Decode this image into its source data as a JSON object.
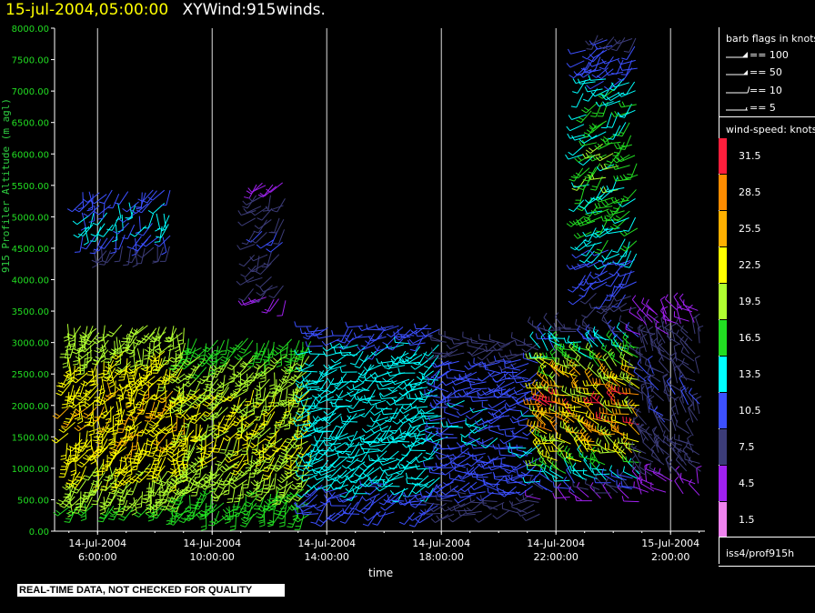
{
  "header": {
    "timestamp": "15-jul-2004,05:00:00",
    "product": "XYWind:915winds."
  },
  "qc_note": "REAL-TIME DATA, NOT CHECKED FOR QUALITY",
  "legend": {
    "barb_title": "barb flags in knots",
    "barb_items": [
      {
        "label": "== 100",
        "icon": "barb-pennant-icon"
      },
      {
        "label": "== 50",
        "icon": "barb-flag-icon"
      },
      {
        "label": "== 10",
        "icon": "barb-full-icon"
      },
      {
        "label": "== 5",
        "icon": "barb-half-icon"
      }
    ],
    "speed_title": "wind-speed: knots",
    "speed_bins": [
      {
        "label": "31.5",
        "color": "#ff1e3c"
      },
      {
        "label": "28.5",
        "color": "#ff8c00"
      },
      {
        "label": "25.5",
        "color": "#ffb000"
      },
      {
        "label": "22.5",
        "color": "#ffff00"
      },
      {
        "label": "19.5",
        "color": "#b0ff30"
      },
      {
        "label": "16.5",
        "color": "#22dd22"
      },
      {
        "label": "13.5",
        "color": "#00ffff"
      },
      {
        "label": "10.5",
        "color": "#3c50ff"
      },
      {
        "label": "7.5",
        "color": "#3c3c78"
      },
      {
        "label": "4.5",
        "color": "#a020f0"
      },
      {
        "label": "1.5",
        "color": "#ee82ee"
      }
    ],
    "station": "iss4/prof915h"
  },
  "chart_data": {
    "type": "scatter",
    "subtype": "wind-barb time-height",
    "ylabel": "915 Profiler Altitude (m agl)",
    "xlabel": "time",
    "ylim": [
      0,
      8000
    ],
    "yticks": [
      "0.00",
      "500.00",
      "1000.00",
      "1500.00",
      "2000.00",
      "2500.00",
      "3000.00",
      "3500.00",
      "4000.00",
      "4500.00",
      "5000.00",
      "5500.00",
      "6000.00",
      "6500.00",
      "7000.00",
      "7500.00",
      "8000.00"
    ],
    "xlim_hours": [
      4.5,
      27.2
    ],
    "xticks": [
      {
        "hour": 6,
        "date": "14-Jul-2004",
        "time": "6:00:00"
      },
      {
        "hour": 10,
        "date": "14-Jul-2004",
        "time": "10:00:00"
      },
      {
        "hour": 14,
        "date": "14-Jul-2004",
        "time": "14:00:00"
      },
      {
        "hour": 18,
        "date": "14-Jul-2004",
        "time": "18:00:00"
      },
      {
        "hour": 22,
        "date": "14-Jul-2004",
        "time": "22:00:00"
      },
      {
        "hour": 26,
        "date": "15-Jul-2004",
        "time": "2:00:00"
      }
    ],
    "vertical_grid": true,
    "profiles": [
      {
        "start": 5.0,
        "end": 9.0,
        "bottom": 400,
        "top": 3300,
        "step": 130,
        "speed": 18,
        "dir": 200,
        "alt_speed": 24
      },
      {
        "start": 9.0,
        "end": 13.5,
        "bottom": 300,
        "top": 3100,
        "step": 130,
        "speed": 16,
        "dir": 210,
        "alt_speed": 22
      },
      {
        "start": 13.5,
        "end": 18.0,
        "bottom": 300,
        "top": 3300,
        "step": 140,
        "speed": 11,
        "dir": 240,
        "alt_speed": 14
      },
      {
        "start": 18.0,
        "end": 21.5,
        "bottom": 300,
        "top": 3000,
        "step": 150,
        "speed": 8,
        "dir": 260,
        "alt_speed": 12
      },
      {
        "start": 21.5,
        "end": 25.0,
        "bottom": 500,
        "top": 3300,
        "step": 150,
        "speed": 6,
        "dir": 300,
        "alt_speed": 28
      },
      {
        "start": 25.0,
        "end": 27.0,
        "bottom": 600,
        "top": 3500,
        "step": 160,
        "speed": 5,
        "dir": 320,
        "alt_speed": 9
      },
      {
        "start": 5.5,
        "end": 8.5,
        "bottom": 4500,
        "top": 5500,
        "step": 180,
        "speed": 9,
        "dir": 200,
        "alt_speed": 13
      },
      {
        "start": 11.5,
        "end": 12.5,
        "bottom": 3700,
        "top": 5500,
        "step": 180,
        "speed": 6,
        "dir": 220,
        "alt_speed": 9
      },
      {
        "start": 23.0,
        "end": 24.8,
        "bottom": 3600,
        "top": 8000,
        "step": 170,
        "speed": 8,
        "dir": 230,
        "alt_speed": 17
      }
    ]
  }
}
